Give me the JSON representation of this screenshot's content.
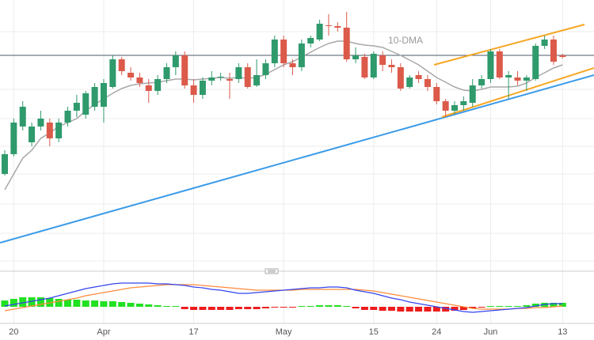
{
  "chart_data": [
    {
      "type": "candlestick",
      "categories": [
        null,
        "20",
        null,
        null,
        null,
        null,
        null,
        null,
        null,
        null,
        null,
        "Apr",
        null,
        null,
        null,
        null,
        null,
        null,
        null,
        null,
        null,
        "17",
        null,
        null,
        null,
        null,
        null,
        null,
        null,
        null,
        null,
        "May",
        null,
        null,
        null,
        null,
        null,
        null,
        null,
        null,
        null,
        "15",
        null,
        null,
        null,
        null,
        null,
        null,
        "24",
        null,
        null,
        null,
        null,
        null,
        "Jun",
        null,
        null,
        null,
        null,
        null,
        null,
        null,
        "13"
      ],
      "open": [
        120,
        145,
        180,
        160,
        180,
        185,
        165,
        185,
        200,
        195,
        205,
        205,
        230,
        265,
        248,
        242,
        232,
        225,
        240,
        255,
        270,
        232,
        220,
        238,
        242,
        240,
        240,
        255,
        232,
        245,
        260,
        290,
        260,
        255,
        285,
        290,
        308,
        307,
        305,
        265,
        268,
        242,
        270,
        258,
        255,
        230,
        245,
        240,
        230,
        212,
        200,
        207,
        210,
        232,
        240,
        275,
        242,
        242,
        238,
        240,
        282,
        290,
        270
      ],
      "high": [
        150,
        190,
        212,
        185,
        200,
        190,
        190,
        205,
        220,
        225,
        235,
        240,
        270,
        268,
        255,
        248,
        240,
        245,
        260,
        275,
        275,
        240,
        242,
        250,
        248,
        248,
        260,
        260,
        265,
        265,
        295,
        295,
        265,
        290,
        295,
        315,
        322,
        312,
        325,
        280,
        272,
        275,
        275,
        265,
        260,
        245,
        250,
        245,
        235,
        215,
        212,
        218,
        240,
        245,
        278,
        278,
        250,
        250,
        245,
        285,
        295,
        295,
        272
      ],
      "low": [
        118,
        142,
        175,
        155,
        175,
        155,
        160,
        180,
        192,
        190,
        200,
        185,
        228,
        245,
        238,
        230,
        210,
        220,
        235,
        245,
        228,
        210,
        215,
        232,
        238,
        215,
        235,
        228,
        230,
        240,
        255,
        255,
        245,
        250,
        280,
        288,
        295,
        300,
        262,
        260,
        240,
        240,
        250,
        248,
        225,
        228,
        235,
        225,
        208,
        192,
        195,
        200,
        205,
        228,
        235,
        240,
        215,
        232,
        225,
        238,
        278,
        258,
        266
      ],
      "close": [
        145,
        185,
        205,
        180,
        190,
        165,
        185,
        200,
        210,
        222,
        230,
        235,
        265,
        250,
        242,
        235,
        225,
        240,
        255,
        270,
        232,
        220,
        238,
        242,
        243,
        238,
        255,
        230,
        245,
        260,
        290,
        260,
        255,
        285,
        292,
        310,
        307,
        305,
        265,
        270,
        242,
        272,
        258,
        255,
        228,
        242,
        240,
        230,
        212,
        200,
        207,
        212,
        232,
        240,
        275,
        242,
        245,
        238,
        242,
        282,
        290,
        262,
        268
      ],
      "up_color": "#2f9a6c",
      "down_color": "#dc5a4a",
      "ma": {
        "name": "10-DMA",
        "color": "#a8a8a8",
        "values": [
          100,
          120,
          140,
          150,
          165,
          172,
          180,
          185,
          190,
          200,
          208,
          215,
          222,
          228,
          232,
          234,
          235,
          236,
          238,
          240,
          240,
          239,
          240,
          241,
          242,
          241,
          242,
          241,
          242,
          246,
          252,
          258,
          262,
          268,
          274,
          280,
          285,
          288,
          288,
          285,
          283,
          282,
          280,
          275,
          270,
          264,
          258,
          250,
          242,
          236,
          230,
          226,
          225,
          227,
          230,
          230,
          230,
          231,
          235,
          242,
          248,
          254,
          258
        ]
      },
      "ylim": [
        0,
        330
      ],
      "grid": true
    },
    {
      "type": "macd",
      "histogram": {
        "up_color": "#22e022",
        "down_color": "#ee1c1c",
        "values": [
          8,
          10,
          12,
          12,
          12,
          11,
          10,
          9,
          9,
          8,
          8,
          7,
          7,
          6,
          5,
          4,
          3,
          2,
          1,
          1,
          -3,
          -4,
          -4,
          -4,
          -4,
          -4,
          -3,
          -3,
          -3,
          -2,
          -1,
          -1,
          -1,
          1,
          1,
          2,
          2,
          2,
          1,
          -2,
          -4,
          -4,
          -5,
          -5,
          -6,
          -6,
          -6,
          -6,
          -6,
          -6,
          -5,
          -4,
          -2,
          -1,
          1,
          1,
          1,
          1,
          2,
          4,
          5,
          5,
          5
        ]
      },
      "macd": {
        "color": "#3344ee",
        "values": [
          1,
          3,
          5,
          7,
          9,
          11,
          14,
          17,
          20,
          23,
          25,
          27,
          29,
          30,
          30,
          30,
          30,
          29,
          29,
          28,
          27,
          25,
          24,
          22,
          21,
          19,
          17,
          17,
          18,
          19,
          20,
          21,
          22,
          23,
          24,
          24,
          25,
          25,
          24,
          21,
          19,
          17,
          14,
          11,
          9,
          6,
          4,
          2,
          0,
          -2,
          -4,
          -6,
          -7,
          -6,
          -5,
          -4,
          -3,
          -2,
          -1,
          1,
          3,
          4,
          4
        ]
      },
      "signal": {
        "color": "#ff8a3a",
        "values": [
          -5,
          -3,
          -1,
          1,
          3,
          5,
          7,
          9,
          11,
          14,
          16,
          18,
          20,
          22,
          24,
          25,
          26,
          27,
          28,
          28,
          28,
          28,
          27,
          26,
          25,
          24,
          23,
          22,
          21,
          21,
          21,
          21,
          21,
          22,
          22,
          22,
          22,
          22,
          22,
          22,
          21,
          20,
          18,
          16,
          14,
          12,
          10,
          8,
          6,
          4,
          2,
          0,
          -2,
          -3,
          -3,
          -3,
          -3,
          -2,
          -2,
          -1,
          -1,
          0,
          1
        ]
      },
      "ylim": [
        -20,
        40
      ]
    }
  ]
}
